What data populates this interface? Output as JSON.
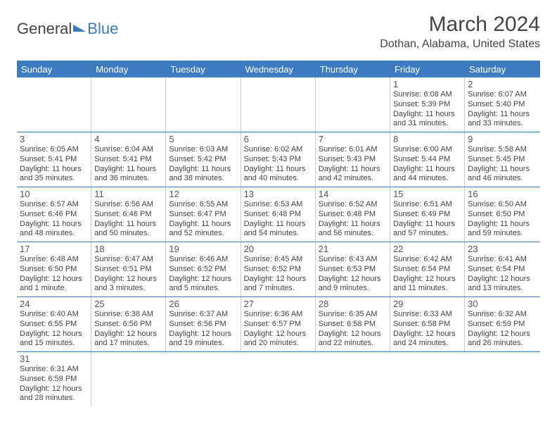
{
  "logo": {
    "part1": "General",
    "part2": "Blue"
  },
  "title": {
    "month": "March 2024",
    "location": "Dothan, Alabama, United States"
  },
  "colors": {
    "header_bg": "#3d7cc0",
    "header_fg": "#ffffff",
    "border": "#3d7cc0",
    "cell_border": "#cccccc"
  },
  "day_headers": [
    "Sunday",
    "Monday",
    "Tuesday",
    "Wednesday",
    "Thursday",
    "Friday",
    "Saturday"
  ],
  "weeks": [
    [
      null,
      null,
      null,
      null,
      null,
      {
        "d": "1",
        "sr": "Sunrise: 6:08 AM",
        "ss": "Sunset: 5:39 PM",
        "dl1": "Daylight: 11 hours",
        "dl2": "and 31 minutes."
      },
      {
        "d": "2",
        "sr": "Sunrise: 6:07 AM",
        "ss": "Sunset: 5:40 PM",
        "dl1": "Daylight: 11 hours",
        "dl2": "and 33 minutes."
      }
    ],
    [
      {
        "d": "3",
        "sr": "Sunrise: 6:05 AM",
        "ss": "Sunset: 5:41 PM",
        "dl1": "Daylight: 11 hours",
        "dl2": "and 35 minutes."
      },
      {
        "d": "4",
        "sr": "Sunrise: 6:04 AM",
        "ss": "Sunset: 5:41 PM",
        "dl1": "Daylight: 11 hours",
        "dl2": "and 36 minutes."
      },
      {
        "d": "5",
        "sr": "Sunrise: 6:03 AM",
        "ss": "Sunset: 5:42 PM",
        "dl1": "Daylight: 11 hours",
        "dl2": "and 38 minutes."
      },
      {
        "d": "6",
        "sr": "Sunrise: 6:02 AM",
        "ss": "Sunset: 5:43 PM",
        "dl1": "Daylight: 11 hours",
        "dl2": "and 40 minutes."
      },
      {
        "d": "7",
        "sr": "Sunrise: 6:01 AM",
        "ss": "Sunset: 5:43 PM",
        "dl1": "Daylight: 11 hours",
        "dl2": "and 42 minutes."
      },
      {
        "d": "8",
        "sr": "Sunrise: 6:00 AM",
        "ss": "Sunset: 5:44 PM",
        "dl1": "Daylight: 11 hours",
        "dl2": "and 44 minutes."
      },
      {
        "d": "9",
        "sr": "Sunrise: 5:58 AM",
        "ss": "Sunset: 5:45 PM",
        "dl1": "Daylight: 11 hours",
        "dl2": "and 46 minutes."
      }
    ],
    [
      {
        "d": "10",
        "sr": "Sunrise: 6:57 AM",
        "ss": "Sunset: 6:46 PM",
        "dl1": "Daylight: 11 hours",
        "dl2": "and 48 minutes."
      },
      {
        "d": "11",
        "sr": "Sunrise: 6:56 AM",
        "ss": "Sunset: 6:46 PM",
        "dl1": "Daylight: 11 hours",
        "dl2": "and 50 minutes."
      },
      {
        "d": "12",
        "sr": "Sunrise: 6:55 AM",
        "ss": "Sunset: 6:47 PM",
        "dl1": "Daylight: 11 hours",
        "dl2": "and 52 minutes."
      },
      {
        "d": "13",
        "sr": "Sunrise: 6:53 AM",
        "ss": "Sunset: 6:48 PM",
        "dl1": "Daylight: 11 hours",
        "dl2": "and 54 minutes."
      },
      {
        "d": "14",
        "sr": "Sunrise: 6:52 AM",
        "ss": "Sunset: 6:48 PM",
        "dl1": "Daylight: 11 hours",
        "dl2": "and 56 minutes."
      },
      {
        "d": "15",
        "sr": "Sunrise: 6:51 AM",
        "ss": "Sunset: 6:49 PM",
        "dl1": "Daylight: 11 hours",
        "dl2": "and 57 minutes."
      },
      {
        "d": "16",
        "sr": "Sunrise: 6:50 AM",
        "ss": "Sunset: 6:50 PM",
        "dl1": "Daylight: 11 hours",
        "dl2": "and 59 minutes."
      }
    ],
    [
      {
        "d": "17",
        "sr": "Sunrise: 6:48 AM",
        "ss": "Sunset: 6:50 PM",
        "dl1": "Daylight: 12 hours",
        "dl2": "and 1 minute."
      },
      {
        "d": "18",
        "sr": "Sunrise: 6:47 AM",
        "ss": "Sunset: 6:51 PM",
        "dl1": "Daylight: 12 hours",
        "dl2": "and 3 minutes."
      },
      {
        "d": "19",
        "sr": "Sunrise: 6:46 AM",
        "ss": "Sunset: 6:52 PM",
        "dl1": "Daylight: 12 hours",
        "dl2": "and 5 minutes."
      },
      {
        "d": "20",
        "sr": "Sunrise: 6:45 AM",
        "ss": "Sunset: 6:52 PM",
        "dl1": "Daylight: 12 hours",
        "dl2": "and 7 minutes."
      },
      {
        "d": "21",
        "sr": "Sunrise: 6:43 AM",
        "ss": "Sunset: 6:53 PM",
        "dl1": "Daylight: 12 hours",
        "dl2": "and 9 minutes."
      },
      {
        "d": "22",
        "sr": "Sunrise: 6:42 AM",
        "ss": "Sunset: 6:54 PM",
        "dl1": "Daylight: 12 hours",
        "dl2": "and 11 minutes."
      },
      {
        "d": "23",
        "sr": "Sunrise: 6:41 AM",
        "ss": "Sunset: 6:54 PM",
        "dl1": "Daylight: 12 hours",
        "dl2": "and 13 minutes."
      }
    ],
    [
      {
        "d": "24",
        "sr": "Sunrise: 6:40 AM",
        "ss": "Sunset: 6:55 PM",
        "dl1": "Daylight: 12 hours",
        "dl2": "and 15 minutes."
      },
      {
        "d": "25",
        "sr": "Sunrise: 6:38 AM",
        "ss": "Sunset: 6:56 PM",
        "dl1": "Daylight: 12 hours",
        "dl2": "and 17 minutes."
      },
      {
        "d": "26",
        "sr": "Sunrise: 6:37 AM",
        "ss": "Sunset: 6:56 PM",
        "dl1": "Daylight: 12 hours",
        "dl2": "and 19 minutes."
      },
      {
        "d": "27",
        "sr": "Sunrise: 6:36 AM",
        "ss": "Sunset: 6:57 PM",
        "dl1": "Daylight: 12 hours",
        "dl2": "and 20 minutes."
      },
      {
        "d": "28",
        "sr": "Sunrise: 6:35 AM",
        "ss": "Sunset: 6:58 PM",
        "dl1": "Daylight: 12 hours",
        "dl2": "and 22 minutes."
      },
      {
        "d": "29",
        "sr": "Sunrise: 6:33 AM",
        "ss": "Sunset: 6:58 PM",
        "dl1": "Daylight: 12 hours",
        "dl2": "and 24 minutes."
      },
      {
        "d": "30",
        "sr": "Sunrise: 6:32 AM",
        "ss": "Sunset: 6:59 PM",
        "dl1": "Daylight: 12 hours",
        "dl2": "and 26 minutes."
      }
    ],
    [
      {
        "d": "31",
        "sr": "Sunrise: 6:31 AM",
        "ss": "Sunset: 6:59 PM",
        "dl1": "Daylight: 12 hours",
        "dl2": "and 28 minutes."
      },
      null,
      null,
      null,
      null,
      null,
      null
    ]
  ]
}
